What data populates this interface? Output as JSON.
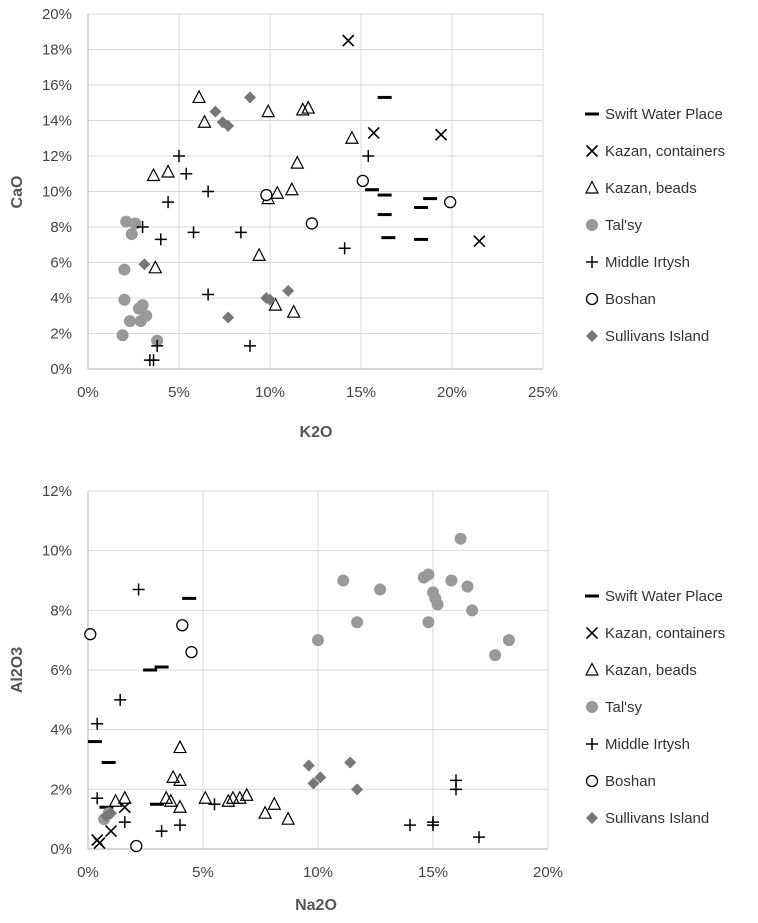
{
  "chart_data": [
    {
      "type": "scatter",
      "xlabel": "K2O",
      "ylabel": "CaO",
      "xlim": [
        0,
        25
      ],
      "ylim": [
        0,
        20
      ],
      "x_ticks": [
        "0%",
        "5%",
        "10%",
        "15%",
        "20%",
        "25%"
      ],
      "y_ticks": [
        "0%",
        "2%",
        "4%",
        "6%",
        "8%",
        "10%",
        "12%",
        "14%",
        "16%",
        "18%",
        "20%"
      ],
      "grid": true,
      "legend_position": "right",
      "series": [
        {
          "name": "Swift Water Place",
          "marker": "dash",
          "color": "#000000",
          "points": [
            [
              16.3,
              15.3
            ],
            [
              15.6,
              10.1
            ],
            [
              16.3,
              9.8
            ],
            [
              16.3,
              8.7
            ],
            [
              16.5,
              7.4
            ],
            [
              18.3,
              9.1
            ],
            [
              18.8,
              9.6
            ],
            [
              18.3,
              7.3
            ]
          ]
        },
        {
          "name": "Kazan, containers",
          "marker": "x",
          "color": "#000000",
          "points": [
            [
              14.3,
              18.5
            ],
            [
              15.7,
              13.3
            ],
            [
              19.4,
              13.2
            ],
            [
              21.5,
              7.2
            ]
          ]
        },
        {
          "name": "Kazan, beads",
          "marker": "triangle",
          "color": "#000000",
          "points": [
            [
              6.1,
              15.3
            ],
            [
              6.4,
              13.9
            ],
            [
              9.9,
              14.5
            ],
            [
              11.8,
              14.6
            ],
            [
              12.1,
              14.7
            ],
            [
              14.5,
              13.0
            ],
            [
              11.5,
              11.6
            ],
            [
              3.6,
              10.9
            ],
            [
              4.4,
              11.1
            ],
            [
              11.2,
              10.1
            ],
            [
              10.4,
              9.9
            ],
            [
              9.9,
              9.6
            ],
            [
              9.4,
              6.4
            ],
            [
              3.7,
              5.7
            ],
            [
              10.3,
              3.6
            ],
            [
              11.3,
              3.2
            ]
          ]
        },
        {
          "name": "Tal'sy",
          "marker": "circle-filled",
          "color": "#999999",
          "points": [
            [
              2.1,
              8.3
            ],
            [
              2.6,
              8.2
            ],
            [
              2.4,
              7.6
            ],
            [
              2.0,
              5.6
            ],
            [
              2.0,
              3.9
            ],
            [
              2.3,
              2.7
            ],
            [
              2.8,
              3.4
            ],
            [
              3.0,
              3.6
            ],
            [
              3.2,
              3.0
            ],
            [
              2.9,
              2.7
            ],
            [
              1.9,
              1.9
            ],
            [
              3.8,
              1.6
            ]
          ]
        },
        {
          "name": "Middle Irtysh",
          "marker": "plus",
          "color": "#000000",
          "points": [
            [
              5.0,
              12.0
            ],
            [
              5.4,
              11.0
            ],
            [
              4.4,
              9.4
            ],
            [
              6.6,
              10.0
            ],
            [
              3.0,
              8.0
            ],
            [
              5.8,
              7.7
            ],
            [
              8.4,
              7.7
            ],
            [
              4.0,
              7.3
            ],
            [
              14.1,
              6.8
            ],
            [
              15.4,
              12.0
            ],
            [
              6.6,
              4.2
            ],
            [
              8.9,
              1.3
            ],
            [
              3.8,
              1.3
            ],
            [
              3.4,
              0.5
            ],
            [
              3.6,
              0.5
            ]
          ]
        },
        {
          "name": "Boshan",
          "marker": "circle-open",
          "color": "#000000",
          "points": [
            [
              9.8,
              9.8
            ],
            [
              12.3,
              8.2
            ],
            [
              15.1,
              10.6
            ],
            [
              19.9,
              9.4
            ]
          ]
        },
        {
          "name": "Sullivans Island",
          "marker": "diamond",
          "color": "#777777",
          "points": [
            [
              8.9,
              15.3
            ],
            [
              7.0,
              14.5
            ],
            [
              7.4,
              13.9
            ],
            [
              7.7,
              13.7
            ],
            [
              3.1,
              5.9
            ],
            [
              9.8,
              4.0
            ],
            [
              10.0,
              3.9
            ],
            [
              11.0,
              4.4
            ],
            [
              7.7,
              2.9
            ]
          ]
        }
      ]
    },
    {
      "type": "scatter",
      "xlabel": "Na2O",
      "ylabel": "Al2O3",
      "xlim": [
        0,
        20
      ],
      "ylim": [
        0,
        12
      ],
      "x_ticks": [
        "0%",
        "5%",
        "10%",
        "15%",
        "20%"
      ],
      "y_ticks": [
        "0%",
        "2%",
        "4%",
        "6%",
        "8%",
        "10%",
        "12%"
      ],
      "grid": true,
      "legend_position": "right",
      "series": [
        {
          "name": "Swift Water Place",
          "marker": "dash",
          "color": "#000000",
          "points": [
            [
              4.4,
              8.4
            ],
            [
              3.2,
              6.1
            ],
            [
              2.7,
              6.0
            ],
            [
              0.3,
              3.6
            ],
            [
              0.9,
              2.9
            ],
            [
              0.8,
              1.4
            ],
            [
              3.0,
              1.5
            ]
          ]
        },
        {
          "name": "Kazan, containers",
          "marker": "x",
          "color": "#000000",
          "points": [
            [
              0.4,
              0.3
            ],
            [
              0.5,
              0.2
            ],
            [
              1.0,
              0.6
            ],
            [
              1.6,
              1.4
            ]
          ]
        },
        {
          "name": "Kazan, beads",
          "marker": "triangle",
          "color": "#000000",
          "points": [
            [
              4.0,
              3.4
            ],
            [
              3.7,
              2.4
            ],
            [
              4.0,
              2.3
            ],
            [
              3.4,
              1.7
            ],
            [
              3.6,
              1.6
            ],
            [
              4.0,
              1.4
            ],
            [
              5.1,
              1.7
            ],
            [
              6.1,
              1.6
            ],
            [
              6.3,
              1.7
            ],
            [
              6.6,
              1.7
            ],
            [
              6.9,
              1.8
            ],
            [
              7.7,
              1.2
            ],
            [
              8.1,
              1.5
            ],
            [
              8.7,
              1.0
            ],
            [
              1.2,
              1.6
            ],
            [
              1.6,
              1.7
            ]
          ]
        },
        {
          "name": "Tal'sy",
          "marker": "circle-filled",
          "color": "#999999",
          "points": [
            [
              16.2,
              10.4
            ],
            [
              11.1,
              9.0
            ],
            [
              12.7,
              8.7
            ],
            [
              14.6,
              9.1
            ],
            [
              14.8,
              9.2
            ],
            [
              15.0,
              8.6
            ],
            [
              15.1,
              8.4
            ],
            [
              15.2,
              8.2
            ],
            [
              15.8,
              9.0
            ],
            [
              16.5,
              8.8
            ],
            [
              16.7,
              8.0
            ],
            [
              11.7,
              7.6
            ],
            [
              14.8,
              7.6
            ],
            [
              10.0,
              7.0
            ],
            [
              17.7,
              6.5
            ],
            [
              18.3,
              7.0
            ],
            [
              0.7,
              1.0
            ],
            [
              0.9,
              1.2
            ]
          ]
        },
        {
          "name": "Middle Irtysh",
          "marker": "plus",
          "color": "#000000",
          "points": [
            [
              2.2,
              8.7
            ],
            [
              1.4,
              5.0
            ],
            [
              0.4,
              4.2
            ],
            [
              0.4,
              1.7
            ],
            [
              1.6,
              0.9
            ],
            [
              3.2,
              0.6
            ],
            [
              4.0,
              0.8
            ],
            [
              5.5,
              1.5
            ],
            [
              14.0,
              0.8
            ],
            [
              15.0,
              0.8
            ],
            [
              15.0,
              0.9
            ],
            [
              16.0,
              2.3
            ],
            [
              16.0,
              2.0
            ],
            [
              17.0,
              0.4
            ]
          ]
        },
        {
          "name": "Boshan",
          "marker": "circle-open",
          "color": "#000000",
          "points": [
            [
              0.1,
              7.2
            ],
            [
              4.1,
              7.5
            ],
            [
              4.5,
              6.6
            ],
            [
              2.1,
              0.1
            ]
          ]
        },
        {
          "name": "Sullivans Island",
          "marker": "diamond",
          "color": "#777777",
          "points": [
            [
              9.6,
              2.8
            ],
            [
              9.8,
              2.2
            ],
            [
              10.1,
              2.4
            ],
            [
              11.4,
              2.9
            ],
            [
              11.7,
              2.0
            ],
            [
              0.8,
              1.1
            ],
            [
              1.0,
              1.2
            ]
          ]
        }
      ]
    }
  ]
}
